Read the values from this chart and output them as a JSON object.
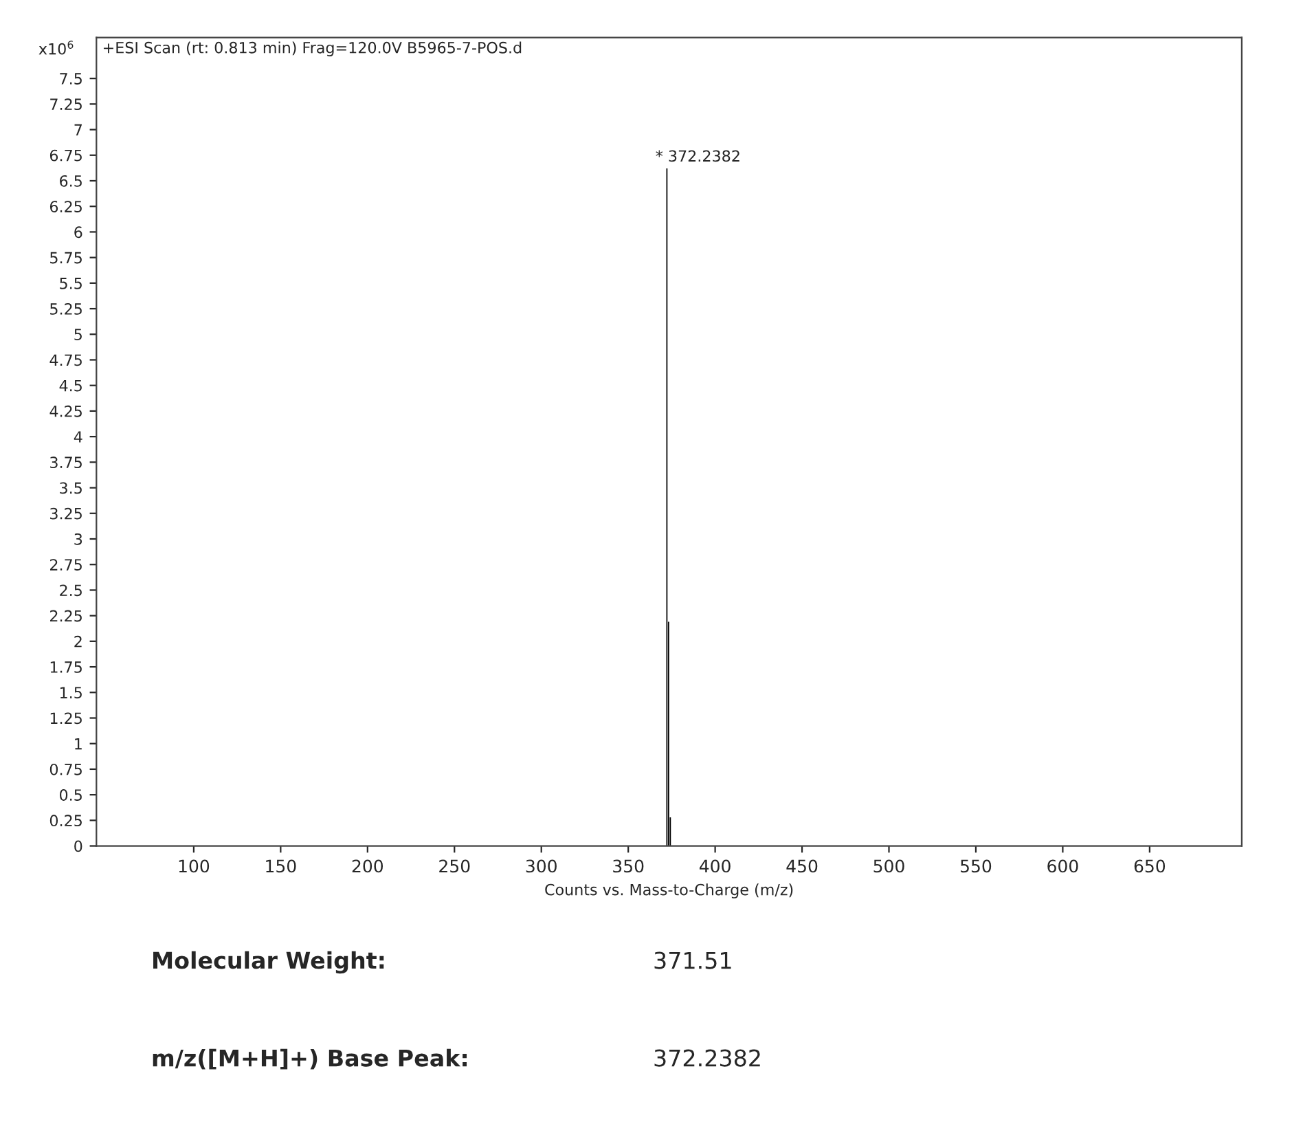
{
  "chart_data": {
    "type": "bar",
    "title": "+ESI Scan (rt: 0.813 min) Frag=120.0V B5965-7-POS.d",
    "xlabel": "Counts vs. Mass-to-Charge (m/z)",
    "ylabel": "x10$^{6}$",
    "x": [
      372.2382,
      373.2,
      374.2
    ],
    "values": [
      6.62,
      2.19,
      0.28
    ],
    "color": "#000000",
    "xlim": [
      44,
      703
    ],
    "ylim": [
      0,
      7.9
    ],
    "xticks": [
      100,
      150,
      200,
      250,
      300,
      350,
      400,
      450,
      500,
      550,
      600,
      650
    ],
    "yticks": [
      0,
      0.25,
      0.5,
      0.75,
      1,
      1.25,
      1.5,
      1.75,
      2,
      2.25,
      2.5,
      2.75,
      3,
      3.25,
      3.5,
      3.75,
      4,
      4.25,
      4.5,
      4.75,
      5,
      5.25,
      5.5,
      5.75,
      6,
      6.25,
      6.5,
      6.75,
      7,
      7.25,
      7.5
    ],
    "grid": false,
    "annotations": [
      {
        "text": "* 372.2382",
        "x": 372.2382,
        "y": 6.62
      },
      "Molecular Weight:",
      "371.51",
      "m/z([M+H]+) Base Peak:",
      "372.2382"
    ]
  }
}
